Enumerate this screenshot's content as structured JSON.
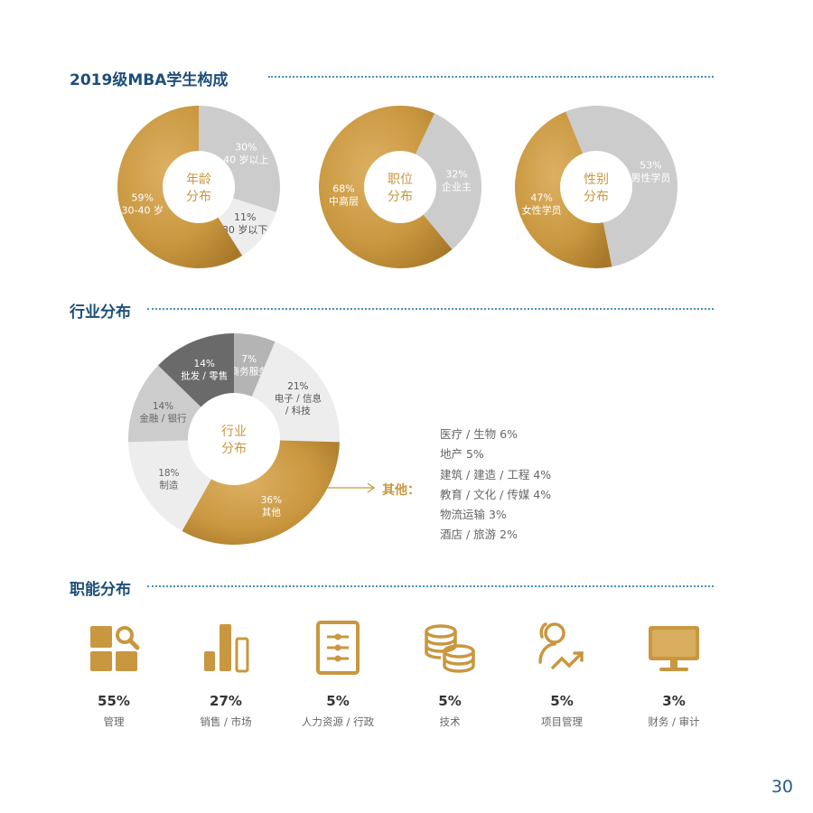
{
  "colors": {
    "gold": "#c9973f",
    "gold_dark": "#a8782a",
    "gray_light": "#ededed",
    "gray_mid": "#cccccc",
    "gray_dark": "#6a6a6a",
    "gray_darker": "#b4b4b4",
    "title_blue": "#1f4e7a",
    "page_num": "#2a5c86"
  },
  "sections": {
    "composition_title": "2019级MBA学生构成",
    "industry_title": "行业分布",
    "function_title": "职能分布"
  },
  "chart_data": [
    {
      "type": "pie",
      "center_label": [
        "年龄",
        "分布"
      ],
      "slices": [
        {
          "pct": "30%",
          "label": "40 岁以上",
          "value": 30
        },
        {
          "pct": "11%",
          "label": "30 岁以下",
          "value": 11
        },
        {
          "pct": "59%",
          "label": "30-40 岁",
          "value": 59
        }
      ]
    },
    {
      "type": "pie",
      "center_label": [
        "职位",
        "分布"
      ],
      "slices": [
        {
          "pct": "32%",
          "label": "企业主",
          "value": 32
        },
        {
          "pct": "68%",
          "label": "中高层",
          "value": 68
        }
      ]
    },
    {
      "type": "pie",
      "center_label": [
        "性别",
        "分布"
      ],
      "slices": [
        {
          "pct": "53%",
          "label": "男性学员",
          "value": 53
        },
        {
          "pct": "47%",
          "label": "女性学员",
          "value": 47
        }
      ]
    },
    {
      "type": "pie",
      "center_label": [
        "行业",
        "分布"
      ],
      "slices": [
        {
          "pct": "7%",
          "label": "商务服务",
          "value": 7
        },
        {
          "pct": "21%",
          "label": "电子 / 信息 / 科技",
          "value": 21
        },
        {
          "pct": "36%",
          "label": "其他",
          "value": 36
        },
        {
          "pct": "18%",
          "label": "制造",
          "value": 18
        },
        {
          "pct": "14%",
          "label": "金融 / 银行",
          "value": 14
        },
        {
          "pct": "14%",
          "label": "批发 / 零售",
          "value": 14
        }
      ]
    }
  ],
  "other_breakdown": {
    "heading": "其他：",
    "items": [
      "医疗 / 生物 6%",
      "地产 5%",
      "建筑 / 建造 / 工程  4%",
      "教育 / 文化 / 传媒 4%",
      "物流运输 3%",
      "酒店 / 旅游 2%"
    ]
  },
  "functions": [
    {
      "icon": "management-icon",
      "pct": "55%",
      "label": "管理"
    },
    {
      "icon": "sales-chart-icon",
      "pct": "27%",
      "label": "销售 / 市场"
    },
    {
      "icon": "hr-clipboard-icon",
      "pct": "5%",
      "label": "人力资源 / 行政"
    },
    {
      "icon": "tech-database-icon",
      "pct": "5%",
      "label": "技术"
    },
    {
      "icon": "project-user-icon",
      "pct": "5%",
      "label": "项目管理"
    },
    {
      "icon": "finance-monitor-icon",
      "pct": "3%",
      "label": "财务 / 审计"
    }
  ],
  "page_number": "30"
}
